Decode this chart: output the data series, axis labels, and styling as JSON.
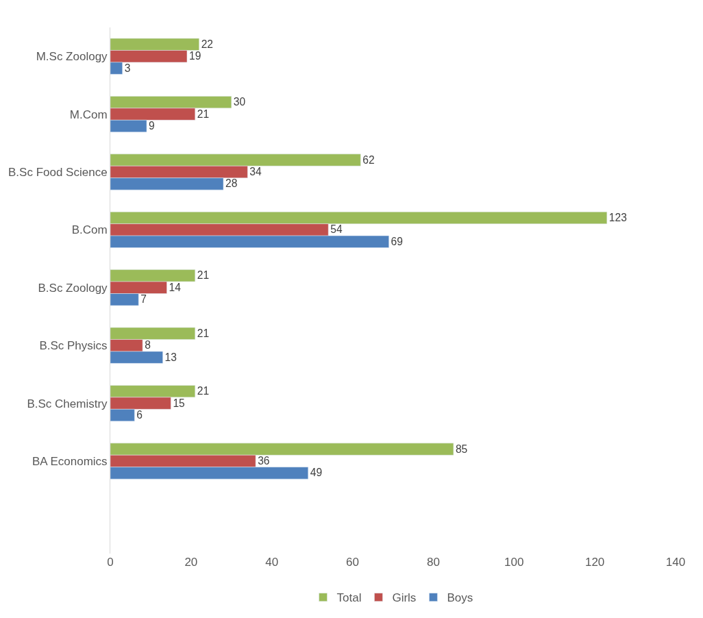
{
  "chart_data": {
    "type": "bar",
    "orientation": "horizontal",
    "categories": [
      "M.Sc Zoology",
      "M.Com",
      "B.Sc Food Science",
      "B.Com",
      "B.Sc Zoology",
      "B.Sc Physics",
      "B.Sc Chemistry",
      "BA Economics"
    ],
    "series": [
      {
        "name": "Total",
        "color": "#9bbb59",
        "values": [
          22,
          30,
          62,
          123,
          21,
          21,
          21,
          85
        ]
      },
      {
        "name": "Girls",
        "color": "#c0504d",
        "values": [
          19,
          21,
          34,
          54,
          14,
          8,
          15,
          36
        ]
      },
      {
        "name": "Boys",
        "color": "#4f81bd",
        "values": [
          3,
          9,
          28,
          69,
          7,
          13,
          6,
          49
        ]
      }
    ],
    "xlim": [
      0,
      140
    ],
    "xticks": [
      0,
      20,
      40,
      60,
      80,
      100,
      120,
      140
    ],
    "data_labels": true,
    "legend": "bottom"
  }
}
